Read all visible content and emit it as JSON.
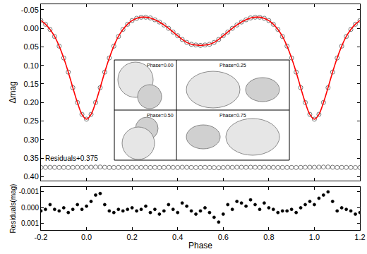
{
  "chart_data": [
    {
      "type": "scatter",
      "y_label": "Δmag",
      "grid": false,
      "tick_labels": "y",
      "xlim": [
        -0.2,
        1.2
      ],
      "xticks": [
        -0.2,
        {
          "value": 0,
          "label": "0.0"
        },
        0.2,
        0.4,
        0.6,
        0.8,
        {
          "value": 1,
          "label": "1.0"
        },
        1.2
      ],
      "ylim": [
        0.41,
        -0.065
      ],
      "yticks": [
        -0.05,
        {
          "value": 0,
          "label": "0.00"
        },
        0.05,
        {
          "value": 0.1,
          "label": "0.10"
        },
        0.15,
        {
          "value": 0.2,
          "label": "0.20"
        },
        0.25,
        {
          "value": 0.3,
          "label": "0.30"
        },
        0.35,
        {
          "value": 0.4,
          "label": "0.40"
        }
      ],
      "annotations": [
        "Residuals+0.375"
      ],
      "inset_labels": [
        "Phase=0.00",
        "Phase=0.25",
        "Phase=0.50",
        "Phase=0.75"
      ],
      "x": [
        -0.2,
        -0.18,
        -0.16,
        -0.14,
        -0.12,
        -0.1,
        -0.08,
        -0.06,
        -0.04,
        -0.02,
        0,
        0.02,
        0.04,
        0.06,
        0.08,
        0.1,
        0.12,
        0.14,
        0.16,
        0.18,
        0.2,
        0.22,
        0.24,
        0.26,
        0.28,
        0.3,
        0.32,
        0.34,
        0.36,
        0.38,
        0.4,
        0.42,
        0.44,
        0.46,
        0.48,
        0.5,
        0.52,
        0.54,
        0.56,
        0.58,
        0.6,
        0.62,
        0.64,
        0.66,
        0.68,
        0.7,
        0.72,
        0.74,
        0.76,
        0.78,
        0.8,
        0.82,
        0.84,
        0.86,
        0.88,
        0.9,
        0.92,
        0.94,
        0.96,
        0.98,
        1,
        1.02,
        1.04,
        1.06,
        1.08,
        1.1,
        1.12,
        1.14,
        1.16,
        1.18,
        1.2
      ],
      "series": [
        {
          "type": "scatter",
          "marker": "circle-open",
          "color": "#555555",
          "values": [
            -0.021,
            -0.011,
            0.003,
            0.022,
            0.048,
            0.08,
            0.118,
            0.16,
            0.2,
            0.232,
            0.245,
            0.232,
            0.2,
            0.16,
            0.118,
            0.08,
            0.048,
            0.022,
            0.003,
            -0.011,
            -0.021,
            -0.027,
            -0.03,
            -0.03,
            -0.028,
            -0.023,
            -0.017,
            -0.009,
            0.0,
            0.01,
            0.02,
            0.03,
            0.038,
            0.043,
            0.045,
            0.046,
            0.045,
            0.043,
            0.038,
            0.03,
            0.02,
            0.01,
            0.0,
            -0.009,
            -0.017,
            -0.023,
            -0.028,
            -0.03,
            -0.03,
            -0.027,
            -0.021,
            -0.011,
            0.003,
            0.022,
            0.048,
            0.08,
            0.118,
            0.16,
            0.2,
            0.232,
            0.245,
            0.232,
            0.2,
            0.16,
            0.118,
            0.08,
            0.048,
            0.022,
            0.003,
            -0.011,
            -0.021
          ]
        },
        {
          "type": "line",
          "line_style": "solid",
          "color": "#ff0000",
          "values": [
            -0.021,
            -0.011,
            0.003,
            0.022,
            0.048,
            0.08,
            0.118,
            0.16,
            0.2,
            0.232,
            0.245,
            0.232,
            0.2,
            0.16,
            0.118,
            0.08,
            0.048,
            0.022,
            0.003,
            -0.011,
            -0.021,
            -0.027,
            -0.03,
            -0.03,
            -0.028,
            -0.023,
            -0.017,
            -0.009,
            0.0,
            0.01,
            0.02,
            0.03,
            0.038,
            0.043,
            0.045,
            0.046,
            0.045,
            0.043,
            0.038,
            0.03,
            0.02,
            0.01,
            0.0,
            -0.009,
            -0.017,
            -0.023,
            -0.028,
            -0.03,
            -0.03,
            -0.027,
            -0.021,
            -0.011,
            0.003,
            0.022,
            0.048,
            0.08,
            0.118,
            0.16,
            0.2,
            0.232,
            0.245,
            0.232,
            0.2,
            0.16,
            0.118,
            0.08,
            0.048,
            0.022,
            0.003,
            -0.011,
            -0.021
          ]
        },
        {
          "type": "scatter",
          "marker": "circle-open",
          "color": "#555555",
          "values": [
            0.3752,
            0.3751,
            0.3748,
            0.3751,
            0.3752,
            0.375,
            0.3753,
            0.3751,
            0.3748,
            0.3751,
            0.3749,
            0.3746,
            0.3742,
            0.3741,
            0.3748,
            0.3752,
            0.3753,
            0.3751,
            0.3752,
            0.3751,
            0.375,
            0.3752,
            0.3751,
            0.3749,
            0.3753,
            0.3751,
            0.3754,
            0.3752,
            0.3748,
            0.3751,
            0.3753,
            0.3747,
            0.3749,
            0.3752,
            0.3754,
            0.3752,
            0.375,
            0.3753,
            0.3756,
            0.3759,
            0.3754,
            0.3748,
            0.3751,
            0.3746,
            0.3747,
            0.3749,
            0.3745,
            0.3748,
            0.3751,
            0.3747,
            0.375,
            0.3751,
            0.3753,
            0.3752,
            0.3752,
            0.3751,
            0.3753,
            0.375,
            0.3748,
            0.3746,
            0.3748,
            0.3744,
            0.3742,
            0.374,
            0.3746,
            0.3752,
            0.375,
            0.3751,
            0.3752,
            0.3754,
            0.3753
          ]
        }
      ]
    },
    {
      "type": "scatter",
      "x_label": "Phase",
      "y_label": "Residuals(mag)",
      "grid": false,
      "xlim": [
        -0.2,
        1.2
      ],
      "xticks": [
        -0.2,
        {
          "value": 0,
          "label": "0.0"
        },
        0.2,
        0.4,
        0.6,
        0.8,
        {
          "value": 1,
          "label": "1.0"
        },
        1.2
      ],
      "ylim": [
        0.0014,
        -0.0013
      ],
      "yticks": [
        -0.001,
        {
          "value": 0,
          "label": "0.000"
        },
        0.001
      ],
      "x": [
        -0.2,
        -0.18,
        -0.16,
        -0.14,
        -0.12,
        -0.1,
        -0.08,
        -0.06,
        -0.04,
        -0.02,
        0,
        0.02,
        0.04,
        0.06,
        0.08,
        0.1,
        0.12,
        0.14,
        0.16,
        0.18,
        0.2,
        0.22,
        0.24,
        0.26,
        0.28,
        0.3,
        0.32,
        0.34,
        0.36,
        0.38,
        0.4,
        0.42,
        0.44,
        0.46,
        0.48,
        0.5,
        0.52,
        0.54,
        0.56,
        0.58,
        0.6,
        0.62,
        0.64,
        0.66,
        0.68,
        0.7,
        0.72,
        0.74,
        0.76,
        0.78,
        0.8,
        0.82,
        0.84,
        0.86,
        0.88,
        0.9,
        0.92,
        0.94,
        0.96,
        0.98,
        1,
        1.02,
        1.04,
        1.06,
        1.08,
        1.1,
        1.12,
        1.14,
        1.16,
        1.18,
        1.2
      ],
      "series": [
        {
          "type": "scatter",
          "marker": "circle",
          "color": "#000000",
          "values": [
            0.0002,
            0.0001,
            -0.0002,
            0.0001,
            0.0002,
            0.0,
            0.0003,
            0.0001,
            -0.0002,
            0.0001,
            -0.0001,
            -0.0004,
            -0.0008,
            -0.0009,
            -0.0002,
            0.0002,
            0.0003,
            0.0001,
            0.0002,
            0.0001,
            0.0,
            0.0002,
            0.0001,
            -0.0001,
            0.0003,
            0.0001,
            0.0004,
            0.0002,
            -0.0002,
            0.0001,
            0.0003,
            -0.0003,
            -0.0001,
            0.0002,
            0.0004,
            0.0002,
            0.0,
            0.0003,
            0.0006,
            0.0009,
            0.0004,
            -0.0002,
            0.0001,
            -0.0004,
            -0.0003,
            -0.0001,
            -0.0005,
            -0.0002,
            0.0001,
            -0.0003,
            0.0,
            0.0001,
            0.0003,
            0.0002,
            0.0002,
            0.0001,
            0.0003,
            0.0,
            -0.0002,
            -0.0004,
            -0.0002,
            -0.0006,
            -0.0008,
            -0.001,
            -0.0004,
            0.0002,
            0.0,
            0.0001,
            0.0002,
            0.0004,
            0.0003
          ]
        }
      ]
    }
  ]
}
